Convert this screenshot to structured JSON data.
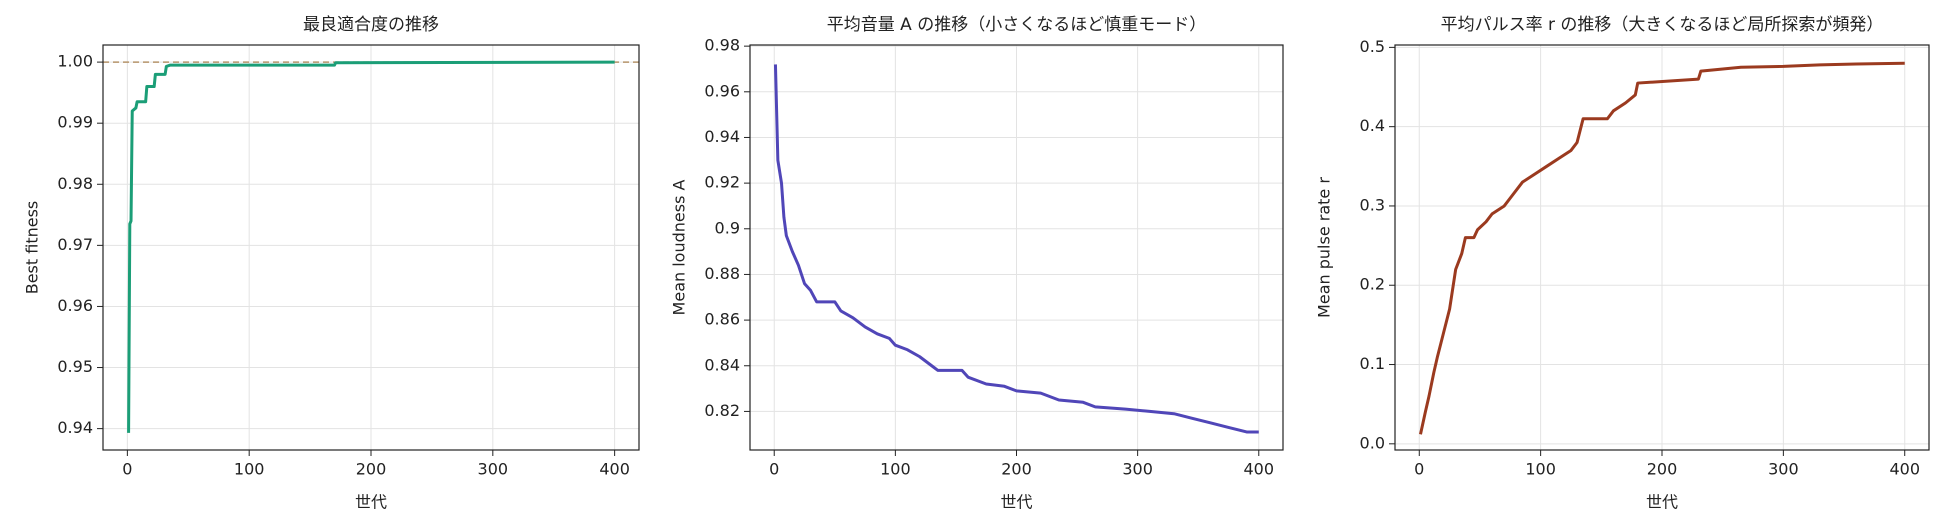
{
  "chart_data": [
    {
      "type": "line",
      "title": "最良適合度の推移",
      "xlabel": "世代",
      "ylabel": "Best fitness",
      "x": [
        1,
        2,
        3,
        4,
        7,
        8,
        15,
        16,
        22,
        23,
        31,
        32,
        35,
        170,
        171,
        400
      ],
      "series": [
        {
          "color": "#1b9e77",
          "values": [
            0.9393,
            0.9735,
            0.974,
            0.992,
            0.9925,
            0.9935,
            0.9935,
            0.996,
            0.996,
            0.998,
            0.998,
            0.9993,
            0.9995,
            0.9995,
            0.9999,
            1.0
          ]
        }
      ],
      "reference_line": {
        "value": 1,
        "color": "#b5946a",
        "style": "dashed"
      },
      "xlim": [
        -20,
        420
      ],
      "ylim": [
        0.9365,
        1.0028
      ],
      "xticks": [
        0,
        100,
        200,
        300,
        400
      ],
      "yticks": [
        0.94,
        0.95,
        0.96,
        0.97,
        0.98,
        0.99,
        {
          "value": 1,
          "label": "1.00"
        }
      ],
      "grid": true
    },
    {
      "type": "line",
      "title": "平均音量 A の推移（小さくなるほど慎重モード）",
      "xlabel": "世代",
      "ylabel": "Mean loudness A",
      "x": [
        1,
        3,
        6,
        8,
        10,
        15,
        20,
        25,
        30,
        35,
        50,
        55,
        65,
        75,
        85,
        95,
        100,
        110,
        120,
        130,
        135,
        155,
        160,
        175,
        190,
        200,
        220,
        235,
        255,
        265,
        290,
        310,
        330,
        345,
        360,
        375,
        390,
        400
      ],
      "series": [
        {
          "color": "#5046b8",
          "values": [
            0.972,
            0.93,
            0.92,
            0.905,
            0.897,
            0.89,
            0.884,
            0.876,
            0.873,
            0.868,
            0.868,
            0.864,
            0.861,
            0.857,
            0.854,
            0.852,
            0.849,
            0.847,
            0.844,
            0.84,
            0.838,
            0.838,
            0.835,
            0.832,
            0.831,
            0.829,
            0.828,
            0.825,
            0.824,
            0.822,
            0.821,
            0.82,
            0.819,
            0.817,
            0.815,
            0.813,
            0.811,
            0.811
          ]
        }
      ],
      "xlim": [
        -20,
        420
      ],
      "ylim": [
        0.8031,
        0.9805
      ],
      "xticks": [
        0,
        100,
        200,
        300,
        400
      ],
      "yticks": [
        0.82,
        0.84,
        0.86,
        0.88,
        0.9,
        0.92,
        0.94,
        0.96,
        0.98
      ],
      "grid": true
    },
    {
      "type": "line",
      "title": "平均パルス率 r の推移（大きくなるほど局所探索が頻発）",
      "xlabel": "世代",
      "ylabel": "Mean pulse rate r",
      "x": [
        1,
        5,
        8,
        12,
        15,
        20,
        25,
        30,
        35,
        38,
        45,
        48,
        55,
        60,
        70,
        75,
        85,
        95,
        105,
        115,
        125,
        130,
        135,
        155,
        160,
        170,
        178,
        180,
        230,
        232,
        265,
        300,
        330,
        360,
        400
      ],
      "series": [
        {
          "color": "#9b3a1f",
          "values": [
            0.012,
            0.04,
            0.06,
            0.09,
            0.11,
            0.14,
            0.17,
            0.22,
            0.24,
            0.26,
            0.26,
            0.27,
            0.28,
            0.29,
            0.3,
            0.31,
            0.33,
            0.34,
            0.35,
            0.36,
            0.37,
            0.38,
            0.41,
            0.41,
            0.42,
            0.43,
            0.44,
            0.455,
            0.46,
            0.47,
            0.475,
            0.476,
            0.478,
            0.479,
            0.48
          ]
        }
      ],
      "xlim": [
        -20,
        420
      ],
      "ylim": [
        -0.0078,
        0.503
      ],
      "xticks": [
        0,
        100,
        200,
        300,
        400
      ],
      "yticks": [
        {
          "value": 0,
          "label": "0.0"
        },
        0.1,
        0.2,
        0.3,
        0.4,
        0.5
      ],
      "grid": true
    }
  ]
}
